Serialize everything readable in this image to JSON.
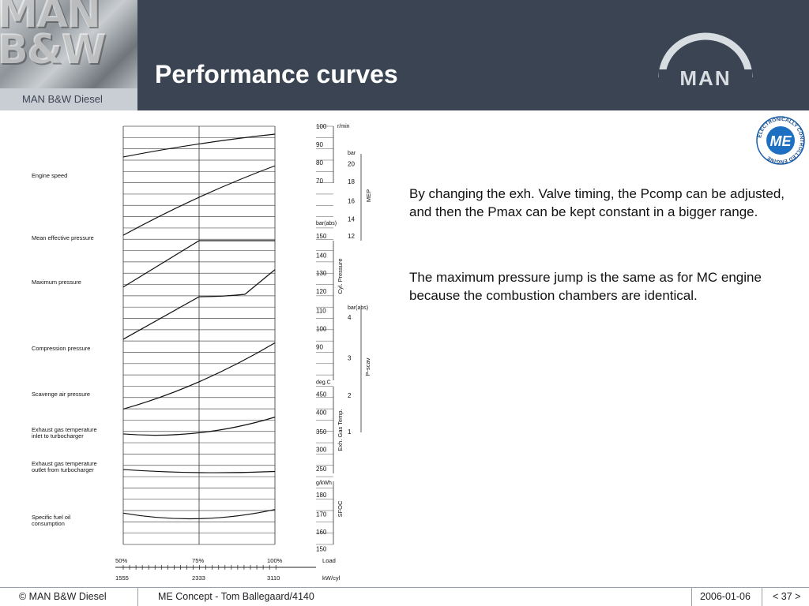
{
  "header": {
    "logo_text": "MAN B&W",
    "subbrand": "MAN B&W Diesel",
    "title": "Performance curves",
    "brand_logo": "MAN",
    "badge_center": "ME",
    "badge_ring": "ELECTRONICALLY CONTROLLED ENGINE"
  },
  "chart_data": {
    "type": "line",
    "left_labels": [
      "Engine speed",
      "Mean effective pressure",
      "Maximum pressure",
      "Compression pressure",
      "Scavenge air pressure",
      "Exhaust gas temperature",
      "inlet to turbocharger",
      "Exhaust gas temperature",
      "outlet from turbocharger",
      "Specific fuel oil",
      "consumption"
    ],
    "scale_inner": [
      "100",
      "90",
      "80",
      "70",
      "bar(abs)",
      "150",
      "140",
      "130",
      "120",
      "110",
      "100",
      "90",
      "deg.C",
      "450",
      "400",
      "350",
      "300",
      "250",
      "g/kWh",
      "180",
      "170",
      "160",
      "150"
    ],
    "inner_unit": "r/min",
    "scale_outer": [
      "bar",
      "20",
      "18",
      "16",
      "14",
      "12",
      "bar(abs)",
      "4",
      "3",
      "2",
      "1"
    ],
    "axis_groups": [
      "MEP",
      "Cyl. Pressure",
      "P-scav",
      "Exh. Gas Temp.",
      "SFOC"
    ],
    "load_percent": [
      "50%",
      "75%",
      "100%"
    ],
    "load_label": "Load",
    "power": [
      "1555",
      "2333",
      "3110"
    ],
    "power_unit": "kW/cyl",
    "series": [
      {
        "values": [
          86,
          94,
          100
        ]
      },
      {
        "values": [
          12.5,
          16.0,
          18.9
        ]
      },
      {
        "values": [
          126,
          150,
          150
        ]
      },
      {
        "values": [
          99,
          121,
          135
        ]
      },
      {
        "values": [
          1.6,
          2.3,
          3.3
        ]
      },
      {
        "values": [
          347,
          350,
          391
        ]
      },
      {
        "values": [
          254,
          246,
          249
        ]
      },
      {
        "values": [
          167,
          164,
          169
        ]
      }
    ]
  },
  "content": {
    "p1": "By changing the exh. Valve timing, the Pcomp can be adjusted, and then the Pmax can be kept constant in a bigger range.",
    "p2": "The maximum pressure jump is the same as for MC engine because the combustion chambers are identical."
  },
  "footer": {
    "copyright": "© MAN B&W Diesel",
    "project": "ME Concept - Tom Ballegaard/4140",
    "date": "2006-01-06",
    "page": "< 37 >"
  }
}
